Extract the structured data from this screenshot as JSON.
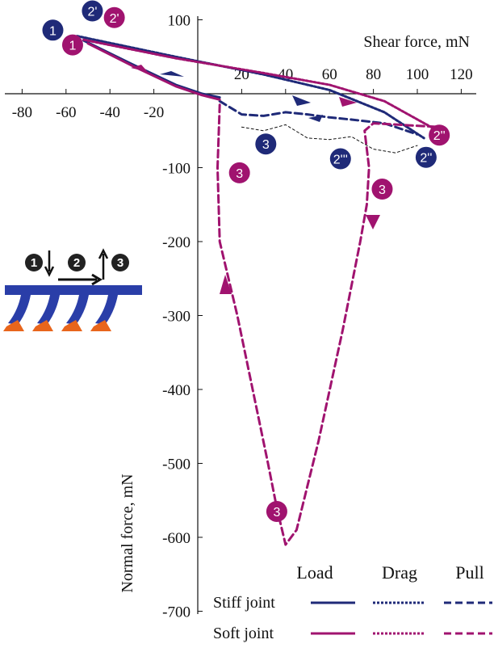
{
  "chart_data": {
    "type": "line",
    "xlabel": "Shear force, mN",
    "ylabel": "Normal force, mN",
    "xlim": [
      -80,
      120
    ],
    "ylim": [
      -700,
      100
    ],
    "x_ticks": [
      -80,
      -60,
      -40,
      -20,
      20,
      40,
      60,
      80,
      100,
      120
    ],
    "y_ticks": [
      100,
      -100,
      -200,
      -300,
      -400,
      -500,
      -600,
      -700
    ],
    "grid": false,
    "colors": {
      "stiff": "#1f2a78",
      "soft": "#a0136f",
      "drag_note": "#111111"
    },
    "legend": {
      "columns": [
        "Load",
        "Drag",
        "Pull"
      ],
      "rows": [
        "Stiff joint",
        "Soft joint"
      ]
    },
    "series": [
      {
        "name": "Stiff joint",
        "phase": "Load",
        "style": "solid",
        "color": "#1f2a78",
        "x": [
          -52,
          -30,
          -10,
          2,
          10
        ],
        "y": [
          72,
          40,
          12,
          0,
          -5
        ]
      },
      {
        "name": "Stiff joint",
        "phase": "Drag",
        "style": "dotted",
        "color": "#1f2a78",
        "x": [
          -55,
          -10,
          30,
          60,
          85,
          103
        ],
        "y": [
          78,
          50,
          26,
          5,
          -25,
          -60
        ]
      },
      {
        "name": "Stiff joint",
        "phase": "Pull",
        "style": "dashed",
        "color": "#1f2a78",
        "x": [
          10,
          20,
          30,
          40,
          50,
          60,
          70,
          85,
          100
        ],
        "y": [
          -10,
          -28,
          -30,
          -25,
          -28,
          -32,
          -35,
          -40,
          -55
        ]
      },
      {
        "name": "Soft joint",
        "phase": "Load",
        "style": "solid",
        "color": "#a0136f",
        "x": [
          -50,
          -30,
          -10,
          2,
          10
        ],
        "y": [
          68,
          38,
          10,
          -2,
          -8
        ]
      },
      {
        "name": "Soft joint",
        "phase": "Drag",
        "style": "dotted",
        "color": "#a0136f",
        "x": [
          -52,
          -10,
          30,
          60,
          85,
          108
        ],
        "y": [
          73,
          48,
          28,
          12,
          -10,
          -48
        ]
      },
      {
        "name": "Soft joint",
        "phase": "Pull",
        "style": "dashed",
        "color": "#a0136f",
        "x": [
          10,
          9,
          10,
          18,
          25,
          32,
          36,
          40,
          45,
          55,
          66,
          74,
          77,
          78,
          76,
          80,
          110
        ],
        "y": [
          -15,
          -100,
          -200,
          -300,
          -400,
          -500,
          -560,
          -610,
          -590,
          -470,
          -320,
          -200,
          -150,
          -100,
          -50,
          -40,
          -45
        ]
      },
      {
        "name": "",
        "phase": "",
        "style": "thin-dashed",
        "color": "#111111",
        "x": [
          20,
          30,
          40,
          50,
          60,
          70,
          80,
          90,
          100
        ],
        "y": [
          -45,
          -50,
          -42,
          -60,
          -62,
          -58,
          -75,
          -80,
          -70
        ]
      }
    ],
    "annotations": [
      {
        "label": "1",
        "color": "stiff",
        "x": -66,
        "y": 86
      },
      {
        "label": "1",
        "color": "soft",
        "x": -57,
        "y": 66
      },
      {
        "label": "2'",
        "color": "stiff",
        "x": -48,
        "y": 112
      },
      {
        "label": "2'",
        "color": "soft",
        "x": -38,
        "y": 103
      },
      {
        "label": "2''",
        "color": "stiff",
        "x": 104,
        "y": -86
      },
      {
        "label": "2''",
        "color": "soft",
        "x": 110,
        "y": -56
      },
      {
        "label": "2'''",
        "color": "stiff",
        "x": 65,
        "y": -88
      },
      {
        "label": "3",
        "color": "stiff",
        "x": 31,
        "y": -68
      },
      {
        "label": "3",
        "color": "soft",
        "x": 19,
        "y": -107
      },
      {
        "label": "3",
        "color": "soft",
        "x": 84,
        "y": -129
      },
      {
        "label": "3",
        "color": "soft",
        "x": 36,
        "y": -565
      }
    ],
    "inset_steps": [
      "1",
      "2",
      "3"
    ]
  }
}
